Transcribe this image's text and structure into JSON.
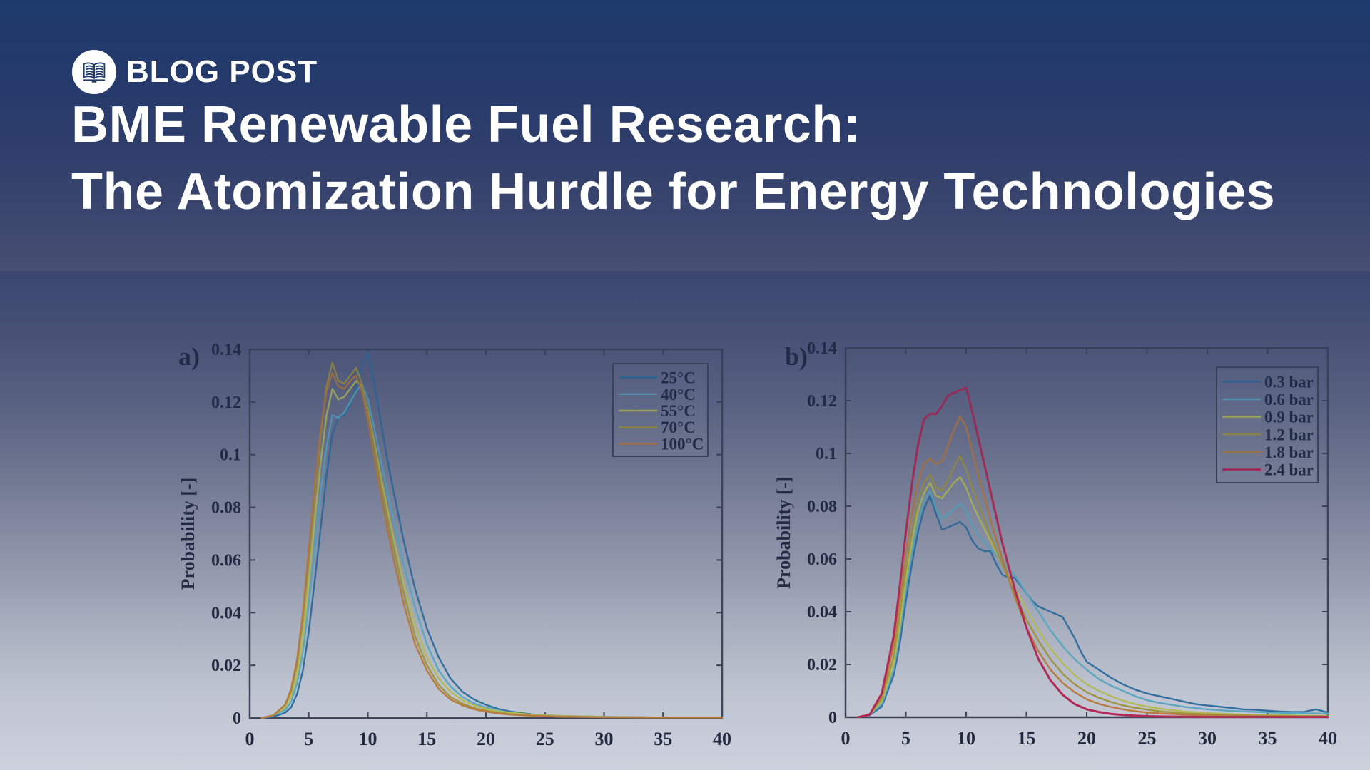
{
  "header": {
    "brand_label": "BLOG POST",
    "logo_icon": "open-book-icon",
    "title_line1": "BME Renewable Fuel Research:",
    "title_line2": "The Atomization Hurdle for Energy Technologies"
  },
  "colors": {
    "background_top": "#1e3a6c",
    "background_bottom": "#cdd1dc",
    "title_text": "#ffffff",
    "axis": "#3f4557",
    "chart_text": "#232a40",
    "series_blue": "#336f9e",
    "series_cyan": "#5aa7bf",
    "series_yellowgreen": "#b3ba57",
    "series_olive": "#9f9440",
    "series_orange": "#b87a3e",
    "series_crimson": "#b12b56"
  },
  "chart_data": [
    {
      "id": "a",
      "type": "line",
      "panel_label": "a)",
      "xlabel": "",
      "ylabel": "Probability [-]",
      "xlim": [
        0,
        40
      ],
      "ylim": [
        0,
        0.14
      ],
      "xticks": [
        0,
        5,
        10,
        15,
        20,
        25,
        30,
        35,
        40
      ],
      "xtick_labels": [
        "0",
        "5",
        "10",
        "15",
        "20",
        "25",
        "30",
        "35",
        "40"
      ],
      "yticks": [
        0,
        0.02,
        0.04,
        0.06,
        0.08,
        0.1,
        0.12,
        0.14
      ],
      "ytick_labels": [
        "0",
        "0.02",
        "0.04",
        "0.06",
        "0.08",
        "0.1",
        "0.12",
        "0.14"
      ],
      "grid": false,
      "legend_position": "upper-right",
      "series": [
        {
          "name": "25°C",
          "color": "#336f9e",
          "width": 2.4,
          "x": [
            1,
            2,
            3,
            3.5,
            4,
            4.5,
            5,
            5.5,
            6,
            6.5,
            7,
            7.5,
            8,
            8.5,
            9,
            9.5,
            10,
            10.5,
            11,
            11.5,
            12,
            13,
            14,
            15,
            16,
            17,
            18,
            19,
            20,
            21,
            22,
            24,
            26,
            30,
            35,
            40
          ],
          "y": [
            0,
            0.0005,
            0.002,
            0.004,
            0.009,
            0.018,
            0.033,
            0.052,
            0.072,
            0.092,
            0.108,
            0.114,
            0.115,
            0.119,
            0.126,
            0.133,
            0.139,
            0.128,
            0.115,
            0.102,
            0.09,
            0.068,
            0.049,
            0.034,
            0.023,
            0.015,
            0.01,
            0.007,
            0.005,
            0.0035,
            0.0025,
            0.0013,
            0.0008,
            0.0004,
            0.0002,
            0.0002
          ]
        },
        {
          "name": "40°C",
          "color": "#5aa7bf",
          "width": 2.4,
          "x": [
            1,
            2,
            3,
            3.5,
            4,
            4.5,
            5,
            5.5,
            6,
            6.5,
            7,
            7.5,
            8,
            8.5,
            9,
            9.5,
            10,
            10.5,
            11,
            12,
            13,
            14,
            15,
            16,
            17,
            18,
            19,
            20,
            21,
            22,
            24,
            26,
            30,
            35,
            40
          ],
          "y": [
            0,
            0.001,
            0.003,
            0.006,
            0.013,
            0.025,
            0.044,
            0.065,
            0.086,
            0.103,
            0.115,
            0.114,
            0.116,
            0.12,
            0.124,
            0.127,
            0.121,
            0.111,
            0.1,
            0.079,
            0.059,
            0.042,
            0.028,
            0.018,
            0.012,
            0.008,
            0.0055,
            0.004,
            0.003,
            0.002,
            0.001,
            0.0007,
            0.0004,
            0.0002,
            0.0002
          ]
        },
        {
          "name": "55°C",
          "color": "#b3ba57",
          "width": 2.4,
          "x": [
            1,
            2,
            3,
            3.5,
            4,
            4.5,
            5,
            5.5,
            6,
            6.5,
            7,
            7.5,
            8,
            8.5,
            9,
            9.5,
            10,
            10.5,
            11,
            12,
            13,
            14,
            15,
            16,
            17,
            18,
            19,
            20,
            21,
            22,
            24,
            26,
            30,
            35,
            40
          ],
          "y": [
            0,
            0.001,
            0.004,
            0.008,
            0.016,
            0.03,
            0.052,
            0.075,
            0.097,
            0.115,
            0.125,
            0.121,
            0.122,
            0.125,
            0.128,
            0.126,
            0.117,
            0.106,
            0.094,
            0.072,
            0.052,
            0.035,
            0.023,
            0.015,
            0.01,
            0.0068,
            0.0048,
            0.0035,
            0.0026,
            0.002,
            0.0012,
            0.0008,
            0.0004,
            0.0002,
            0.0002
          ]
        },
        {
          "name": "70°C",
          "color": "#9f9440",
          "width": 2.4,
          "x": [
            1,
            2,
            3,
            3.5,
            4,
            4.5,
            5,
            5.5,
            6,
            6.5,
            7,
            7.5,
            8,
            8.5,
            9,
            9.5,
            10,
            10.5,
            11,
            12,
            13,
            14,
            15,
            16,
            17,
            18,
            19,
            20,
            21,
            22,
            24,
            26,
            30,
            35,
            40
          ],
          "y": [
            0,
            0.001,
            0.005,
            0.01,
            0.02,
            0.037,
            0.06,
            0.084,
            0.107,
            0.126,
            0.135,
            0.128,
            0.127,
            0.13,
            0.133,
            0.127,
            0.116,
            0.104,
            0.091,
            0.068,
            0.048,
            0.031,
            0.02,
            0.0125,
            0.008,
            0.0055,
            0.0038,
            0.0028,
            0.002,
            0.0015,
            0.0009,
            0.0006,
            0.0003,
            0.0002,
            0.0002
          ]
        },
        {
          "name": "100°C",
          "color": "#b87a3e",
          "width": 2.4,
          "x": [
            1,
            2,
            3,
            3.5,
            4,
            4.5,
            5,
            5.5,
            6,
            6.5,
            7,
            7.5,
            8,
            8.5,
            9,
            9.5,
            10,
            10.5,
            11,
            12,
            13,
            14,
            15,
            16,
            17,
            18,
            19,
            20,
            21,
            22,
            24,
            26,
            30,
            35,
            40
          ],
          "y": [
            0,
            0.001,
            0.005,
            0.011,
            0.022,
            0.04,
            0.064,
            0.088,
            0.11,
            0.124,
            0.131,
            0.126,
            0.125,
            0.128,
            0.13,
            0.124,
            0.113,
            0.1,
            0.087,
            0.064,
            0.044,
            0.028,
            0.018,
            0.011,
            0.007,
            0.0048,
            0.0033,
            0.0024,
            0.0018,
            0.0013,
            0.0008,
            0.0005,
            0.0003,
            0.0002,
            0.0002
          ]
        }
      ]
    },
    {
      "id": "b",
      "type": "line",
      "panel_label": "b)",
      "xlabel": "",
      "ylabel": "Probability [-]",
      "xlim": [
        0,
        40
      ],
      "ylim": [
        0,
        0.14
      ],
      "xticks": [
        0,
        5,
        10,
        15,
        20,
        25,
        30,
        35,
        40
      ],
      "xtick_labels": [
        "0",
        "5",
        "10",
        "15",
        "20",
        "25",
        "30",
        "35",
        "40"
      ],
      "yticks": [
        0,
        0.02,
        0.04,
        0.06,
        0.08,
        0.1,
        0.12,
        0.14
      ],
      "ytick_labels": [
        "0",
        "0.02",
        "0.04",
        "0.06",
        "0.08",
        "0.1",
        "0.12",
        "0.14"
      ],
      "grid": false,
      "legend_position": "upper-right",
      "series": [
        {
          "name": "0.3 bar",
          "color": "#336f9e",
          "width": 2.4,
          "x": [
            1,
            2,
            3,
            4,
            4.5,
            5,
            5.5,
            6,
            6.5,
            7,
            7.5,
            8,
            8.5,
            9,
            9.5,
            10,
            10.5,
            11,
            11.5,
            12,
            12.5,
            13,
            13.5,
            14,
            14.5,
            15,
            15.5,
            16,
            16.5,
            17,
            17.5,
            18,
            18.5,
            19,
            19.5,
            20,
            21,
            22,
            23,
            24,
            25,
            26,
            27,
            28,
            29,
            30,
            31,
            32,
            33,
            34,
            35,
            36,
            37,
            38,
            39,
            40
          ],
          "y": [
            0,
            0.0008,
            0.004,
            0.016,
            0.028,
            0.044,
            0.058,
            0.07,
            0.079,
            0.084,
            0.077,
            0.071,
            0.072,
            0.073,
            0.074,
            0.072,
            0.067,
            0.064,
            0.063,
            0.063,
            0.058,
            0.054,
            0.053,
            0.053,
            0.05,
            0.047,
            0.044,
            0.042,
            0.041,
            0.04,
            0.039,
            0.038,
            0.034,
            0.03,
            0.025,
            0.021,
            0.018,
            0.015,
            0.0125,
            0.0105,
            0.009,
            0.008,
            0.007,
            0.006,
            0.005,
            0.0045,
            0.004,
            0.0035,
            0.003,
            0.0028,
            0.0025,
            0.0022,
            0.002,
            0.002,
            0.003,
            0.0018
          ]
        },
        {
          "name": "0.6 bar",
          "color": "#5aa7bf",
          "width": 2.4,
          "x": [
            1,
            2,
            3,
            4,
            4.5,
            5,
            5.5,
            6,
            6.5,
            7,
            7.5,
            8,
            8.5,
            9,
            9.5,
            10,
            10.5,
            11,
            12,
            13,
            14,
            15,
            16,
            17,
            18,
            19,
            20,
            21,
            22,
            23,
            24,
            25,
            26,
            28,
            30,
            32,
            34,
            36,
            38,
            40
          ],
          "y": [
            0,
            0.001,
            0.005,
            0.018,
            0.032,
            0.048,
            0.062,
            0.074,
            0.082,
            0.086,
            0.079,
            0.075,
            0.077,
            0.079,
            0.081,
            0.078,
            0.073,
            0.069,
            0.064,
            0.059,
            0.054,
            0.047,
            0.04,
            0.033,
            0.027,
            0.022,
            0.018,
            0.0145,
            0.012,
            0.01,
            0.008,
            0.0065,
            0.0055,
            0.004,
            0.003,
            0.0024,
            0.002,
            0.0017,
            0.0015,
            0.0014
          ]
        },
        {
          "name": "0.9 bar",
          "color": "#b3ba57",
          "width": 2.4,
          "x": [
            1,
            2,
            3,
            4,
            4.5,
            5,
            5.5,
            6,
            6.5,
            7,
            7.5,
            8,
            8.5,
            9,
            9.5,
            10,
            10.5,
            11,
            12,
            13,
            14,
            15,
            16,
            17,
            18,
            19,
            20,
            21,
            22,
            23,
            24,
            25,
            26,
            28,
            30,
            32,
            34,
            36,
            38,
            40
          ],
          "y": [
            0,
            0.001,
            0.006,
            0.02,
            0.035,
            0.052,
            0.066,
            0.078,
            0.085,
            0.089,
            0.084,
            0.083,
            0.086,
            0.089,
            0.091,
            0.087,
            0.081,
            0.076,
            0.067,
            0.058,
            0.049,
            0.041,
            0.033,
            0.026,
            0.0205,
            0.016,
            0.0125,
            0.01,
            0.008,
            0.0063,
            0.005,
            0.004,
            0.0033,
            0.0022,
            0.0016,
            0.0012,
            0.0009,
            0.0008,
            0.0006,
            0.0005
          ]
        },
        {
          "name": "1.2 bar",
          "color": "#9f9440",
          "width": 2.4,
          "x": [
            1,
            2,
            3,
            4,
            4.5,
            5,
            5.5,
            6,
            6.5,
            7,
            7.5,
            8,
            8.5,
            9,
            9.5,
            10,
            10.5,
            11,
            12,
            13,
            14,
            15,
            16,
            17,
            18,
            19,
            20,
            21,
            22,
            23,
            24,
            25,
            26,
            28,
            30,
            32,
            34,
            36,
            38,
            40
          ],
          "y": [
            0,
            0.001,
            0.007,
            0.023,
            0.039,
            0.056,
            0.07,
            0.082,
            0.089,
            0.092,
            0.087,
            0.086,
            0.09,
            0.095,
            0.099,
            0.094,
            0.087,
            0.081,
            0.069,
            0.058,
            0.047,
            0.037,
            0.029,
            0.022,
            0.0165,
            0.0125,
            0.0095,
            0.0074,
            0.0058,
            0.0045,
            0.0036,
            0.0029,
            0.0023,
            0.0015,
            0.0011,
            0.0008,
            0.0006,
            0.0005,
            0.0004,
            0.0004
          ]
        },
        {
          "name": "1.8 bar",
          "color": "#b87a3e",
          "width": 2.4,
          "x": [
            1,
            2,
            3,
            4,
            4.5,
            5,
            5.5,
            6,
            6.5,
            7,
            7.5,
            8,
            8.5,
            9,
            9.5,
            10,
            10.5,
            11,
            12,
            13,
            14,
            15,
            16,
            17,
            18,
            19,
            20,
            21,
            22,
            23,
            24,
            25,
            26,
            28,
            30,
            32,
            34,
            36,
            38,
            40
          ],
          "y": [
            0,
            0.001,
            0.008,
            0.027,
            0.044,
            0.062,
            0.077,
            0.089,
            0.096,
            0.098,
            0.096,
            0.097,
            0.103,
            0.109,
            0.114,
            0.11,
            0.101,
            0.092,
            0.075,
            0.06,
            0.046,
            0.034,
            0.025,
            0.018,
            0.013,
            0.0095,
            0.0068,
            0.0051,
            0.0039,
            0.003,
            0.0023,
            0.0018,
            0.0015,
            0.001,
            0.0007,
            0.0005,
            0.0004,
            0.0003,
            0.0003,
            0.0003
          ]
        },
        {
          "name": "2.4 bar",
          "color": "#b12b56",
          "width": 3,
          "x": [
            1,
            2,
            3,
            4,
            4.5,
            5,
            5.5,
            6,
            6.5,
            7,
            7.5,
            8,
            8.5,
            9,
            9.5,
            10,
            10.5,
            11,
            12,
            13,
            14,
            15,
            16,
            17,
            18,
            19,
            20,
            21,
            22,
            23,
            24,
            25,
            26,
            28,
            30,
            32,
            34,
            36,
            38,
            40
          ],
          "y": [
            0,
            0.001,
            0.009,
            0.031,
            0.05,
            0.07,
            0.088,
            0.103,
            0.113,
            0.115,
            0.115,
            0.118,
            0.122,
            0.123,
            0.124,
            0.125,
            0.116,
            0.106,
            0.086,
            0.066,
            0.049,
            0.034,
            0.022,
            0.014,
            0.0085,
            0.005,
            0.003,
            0.002,
            0.0013,
            0.0009,
            0.0006,
            0.0004,
            0.0003,
            0.0002,
            0.0001,
            0.0001,
            0.0001,
            0.0001,
            0.0001,
            0.0001
          ]
        }
      ]
    }
  ]
}
